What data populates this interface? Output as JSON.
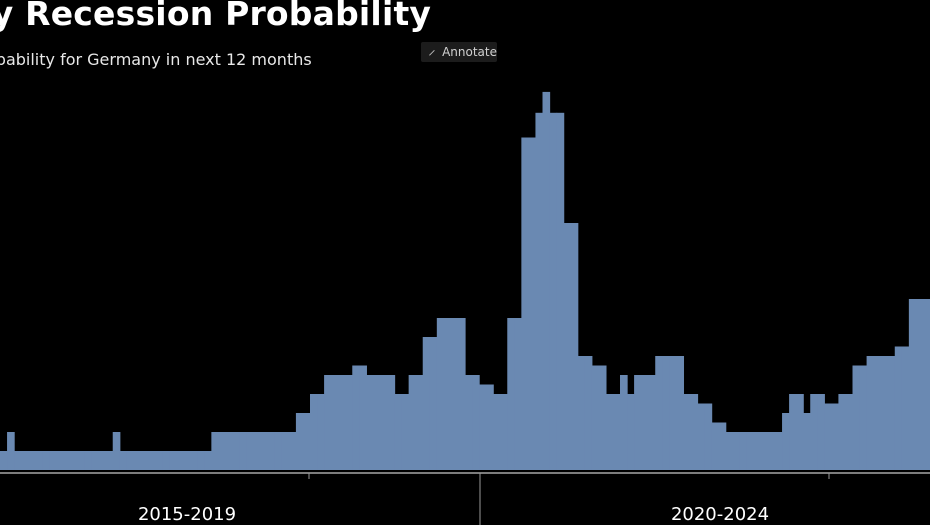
{
  "header": {
    "title": "ny Recession Probability",
    "subtitle": "obability for Germany in next 12 months",
    "annotate_label": "Annotate"
  },
  "colors": {
    "background": "#000000",
    "bar_fill": "#6a89b2",
    "axis": "#c8c8c8",
    "text": "#ffffff"
  },
  "chart_data": {
    "type": "area",
    "title": "ny Recession Probability",
    "subtitle": "obability for Germany in next 12 months",
    "xlabel": "",
    "ylabel": "",
    "ylim": [
      0,
      80
    ],
    "grid": false,
    "category_labels": [
      "2015-2019",
      "2020-2024"
    ],
    "series": [
      {
        "name": "Recession probability",
        "steps": [
          {
            "i": 0,
            "v": 10
          },
          {
            "i": 1,
            "v": 20
          },
          {
            "i": 2,
            "v": 10
          },
          {
            "i": 16,
            "v": 20
          },
          {
            "i": 17,
            "v": 10
          },
          {
            "i": 30,
            "v": 20
          },
          {
            "i": 42,
            "v": 30
          },
          {
            "i": 44,
            "v": 40
          },
          {
            "i": 46,
            "v": 50
          },
          {
            "i": 50,
            "v": 55
          },
          {
            "i": 52,
            "v": 50
          },
          {
            "i": 56,
            "v": 40
          },
          {
            "i": 58,
            "v": 50
          },
          {
            "i": 60,
            "v": 70
          },
          {
            "i": 62,
            "v": 80
          },
          {
            "i": 66,
            "v": 50
          },
          {
            "i": 68,
            "v": 45
          },
          {
            "i": 70,
            "v": 40
          },
          {
            "i": 72,
            "v": 80
          },
          {
            "i": 74,
            "v": 175
          },
          {
            "i": 76,
            "v": 188
          },
          {
            "i": 77,
            "v": 199
          },
          {
            "i": 78,
            "v": 188
          },
          {
            "i": 80,
            "v": 130
          },
          {
            "i": 82,
            "v": 60
          },
          {
            "i": 84,
            "v": 55
          },
          {
            "i": 86,
            "v": 40
          },
          {
            "i": 88,
            "v": 50
          },
          {
            "i": 89,
            "v": 40
          },
          {
            "i": 90,
            "v": 50
          },
          {
            "i": 93,
            "v": 60
          },
          {
            "i": 97,
            "v": 40
          },
          {
            "i": 99,
            "v": 35
          },
          {
            "i": 101,
            "v": 25
          },
          {
            "i": 103,
            "v": 20
          },
          {
            "i": 111,
            "v": 30
          },
          {
            "i": 112,
            "v": 40
          },
          {
            "i": 114,
            "v": 30
          },
          {
            "i": 115,
            "v": 40
          },
          {
            "i": 117,
            "v": 35
          },
          {
            "i": 119,
            "v": 40
          },
          {
            "i": 121,
            "v": 55
          },
          {
            "i": 123,
            "v": 60
          },
          {
            "i": 127,
            "v": 65
          },
          {
            "i": 129,
            "v": 90
          },
          {
            "i": 131,
            "v": 90
          }
        ],
        "n_points": 132
      }
    ]
  }
}
